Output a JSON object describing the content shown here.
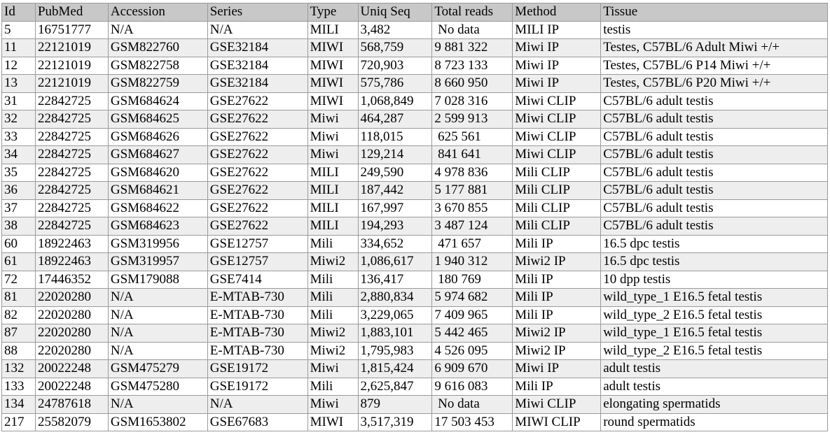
{
  "table": {
    "headers": [
      "Id",
      "PubMed",
      "Accession",
      "Series",
      "Type",
      "Uniq Seq",
      "Total reads",
      "Method",
      "Tissue"
    ],
    "rows": [
      [
        "5",
        "16751777",
        "N/A",
        "N/A",
        "MILI",
        "3,482",
        " No data",
        "MILI IP",
        "testis"
      ],
      [
        "11",
        "22121019",
        "GSM822760",
        "GSE32184",
        "MIWI",
        "568,759",
        "9 881 322",
        "Miwi IP",
        "Testes, C57BL/6 Adult Miwi +/+"
      ],
      [
        "12",
        "22121019",
        "GSM822758",
        "GSE32184",
        "MIWI",
        "720,903",
        "8 723 133",
        "Miwi IP",
        "Testes, C57BL/6 P14 Miwi +/+"
      ],
      [
        "13",
        "22121019",
        "GSM822759",
        "GSE32184",
        "MIWI",
        "575,786",
        "8 660 950",
        "Miwi IP",
        "Testes, C57BL/6 P20 Miwi +/+"
      ],
      [
        "31",
        "22842725",
        "GSM684624",
        "GSE27622",
        "MIWI",
        "1,068,849",
        "7 028 316",
        "Miwi CLIP",
        "C57BL/6 adult testis"
      ],
      [
        "32",
        "22842725",
        "GSM684625",
        "GSE27622",
        "Miwi",
        "464,287",
        "2 599 913",
        "Miwi CLIP",
        "C57BL/6 adult testis"
      ],
      [
        "33",
        "22842725",
        "GSM684626",
        "GSE27622",
        "Miwi",
        "118,015",
        " 625 561",
        "Miwi CLIP",
        "C57BL/6 adult testis"
      ],
      [
        "34",
        "22842725",
        "GSM684627",
        "GSE27622",
        "Miwi",
        "129,214",
        " 841 641",
        "Miwi CLIP",
        "C57BL/6 adult testis"
      ],
      [
        "35",
        "22842725",
        "GSM684620",
        "GSE27622",
        "MILI",
        "249,590",
        "4 978 836",
        "Mili CLIP",
        "C57BL/6 adult testis"
      ],
      [
        "36",
        "22842725",
        "GSM684621",
        "GSE27622",
        "MILI",
        "187,442",
        "5 177 881",
        "Mili CLIP",
        "C57BL/6 adult testis"
      ],
      [
        "37",
        "22842725",
        "GSM684622",
        "GSE27622",
        "MILI",
        "167,997",
        "3 670 855",
        "Mili CLIP",
        "C57BL/6 adult testis"
      ],
      [
        "38",
        "22842725",
        "GSM684623",
        "GSE27622",
        "MILI",
        "194,293",
        "3 487 124",
        "Mili CLIP",
        "C57BL/6 adult testis"
      ],
      [
        "60",
        "18922463",
        "GSM319956",
        "GSE12757",
        "Mili",
        "334,652",
        " 471 657",
        "Mili IP",
        "16.5 dpc testis"
      ],
      [
        "61",
        "18922463",
        "GSM319957",
        "GSE12757",
        "Miwi2",
        "1,086,617",
        "1 940 312",
        "Miwi2 IP",
        "16.5 dpc testis"
      ],
      [
        "72",
        "17446352",
        "GSM179088",
        "GSE7414",
        "Mili",
        "136,417",
        " 180 769",
        "Mili IP",
        "10 dpp testis"
      ],
      [
        "81",
        "22020280",
        "N/A",
        "E-MTAB-730",
        "Mili",
        "2,880,834",
        "5 974 682",
        "Mili IP",
        "wild_type_1 E16.5 fetal testis"
      ],
      [
        "82",
        "22020280",
        "N/A",
        "E-MTAB-730",
        "Mili",
        "3,229,065",
        "7 409 965",
        "Mili IP",
        "wild_type_2 E16.5 fetal testis"
      ],
      [
        "87",
        "22020280",
        "N/A",
        "E-MTAB-730",
        "Miwi2",
        "1,883,101",
        "5 442 465",
        "Miwi2 IP",
        "wild_type_1 E16.5 fetal testis"
      ],
      [
        "88",
        "22020280",
        "N/A",
        "E-MTAB-730",
        "Miwi2",
        "1,795,983",
        "4 526 095",
        "Miwi2 IP",
        "wild_type_2 E16.5 fetal testis"
      ],
      [
        "132",
        "20022248",
        "GSM475279",
        "GSE19172",
        "Miwi",
        "1,815,424",
        "6 909 670",
        "Miwi IP",
        "adult testis"
      ],
      [
        "133",
        "20022248",
        "GSM475280",
        "GSE19172",
        "Mili",
        "2,625,847",
        "9 616 083",
        "Mili IP",
        "adult testis"
      ],
      [
        "134",
        "24787618",
        "N/A",
        "N/A",
        "Miwi",
        "879",
        " No data",
        "Miwi CLIP",
        "elongating spermatids"
      ],
      [
        "217",
        "25582079",
        "GSM1653802",
        "GSE67683",
        "MIWI",
        "3,517,319",
        "17 503 453",
        "MIWI CLIP",
        "round spermatids"
      ]
    ]
  }
}
